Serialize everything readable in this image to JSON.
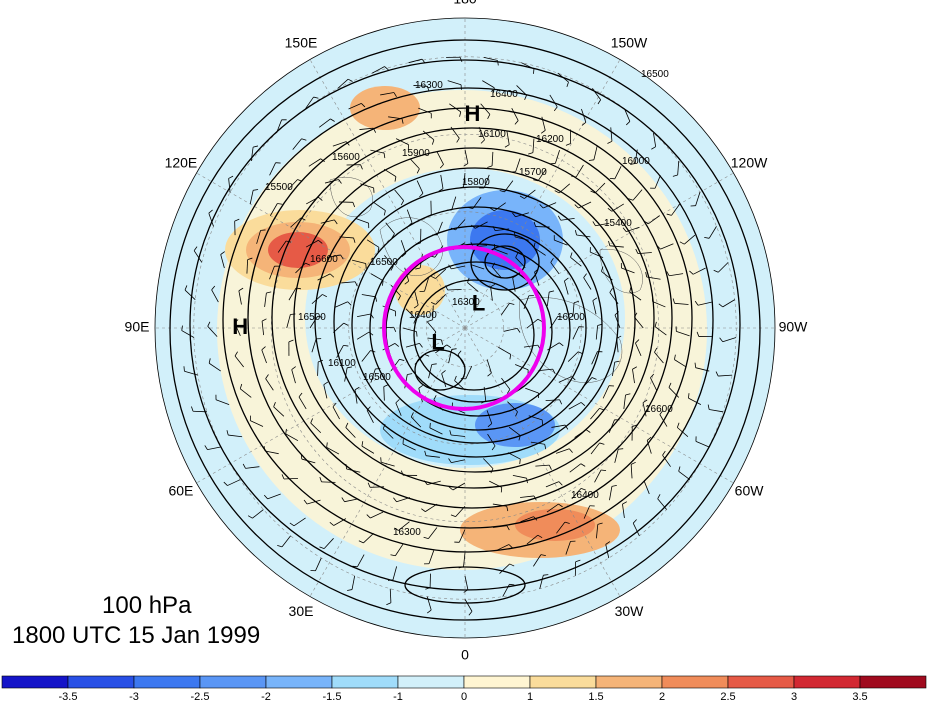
{
  "title": {
    "level": "100 hPa",
    "time": "1800 UTC 15 Jan 1999"
  },
  "longitude_labels": [
    {
      "lon": 0,
      "text": "0"
    },
    {
      "lon": -30,
      "text": "30W"
    },
    {
      "lon": -60,
      "text": "60W"
    },
    {
      "lon": -90,
      "text": "90W"
    },
    {
      "lon": -120,
      "text": "120W"
    },
    {
      "lon": -150,
      "text": "150W"
    },
    {
      "lon": 180,
      "text": "180"
    },
    {
      "lon": 150,
      "text": "150E"
    },
    {
      "lon": 120,
      "text": "120E"
    },
    {
      "lon": 90,
      "text": "90E"
    },
    {
      "lon": 60,
      "text": "60E"
    },
    {
      "lon": 30,
      "text": "30E"
    }
  ],
  "pressure_centers": [
    {
      "type": "L",
      "text": "L",
      "lon": 60,
      "lat": 82
    },
    {
      "type": "L",
      "text": "L",
      "lon": -150,
      "lat": 83
    },
    {
      "type": "H",
      "text": "H",
      "lon": 90,
      "lat": 32
    },
    {
      "type": "H",
      "text": "H",
      "lon": -178,
      "lat": 35
    }
  ],
  "contour_labels": [
    "16500",
    "16400",
    "16300",
    "16200",
    "16100",
    "16000",
    "15900",
    "15800",
    "15700",
    "15600",
    "15500",
    "15400",
    "16600",
    "16500",
    "16500",
    "16400",
    "16300",
    "16200",
    "16100",
    "16500",
    "16600",
    "16400",
    "16300"
  ],
  "colorbar": {
    "ticks": [
      "-3.5",
      "-3",
      "-2.5",
      "-2",
      "-1.5",
      "-1",
      "0",
      "1",
      "1.5",
      "2",
      "2.5",
      "3",
      "3.5"
    ],
    "colors": [
      "#1414c8",
      "#2850e6",
      "#3c78f0",
      "#5a96f5",
      "#78b4fa",
      "#a0dcfa",
      "#d2f0fa",
      "#fff5d2",
      "#fadc9b",
      "#f5b478",
      "#f08c5a",
      "#e65a46",
      "#d22832",
      "#a00a1e"
    ]
  },
  "highlight_circle": {
    "color": "#ee00ee",
    "center_lon": 0,
    "center_lat": 90
  }
}
